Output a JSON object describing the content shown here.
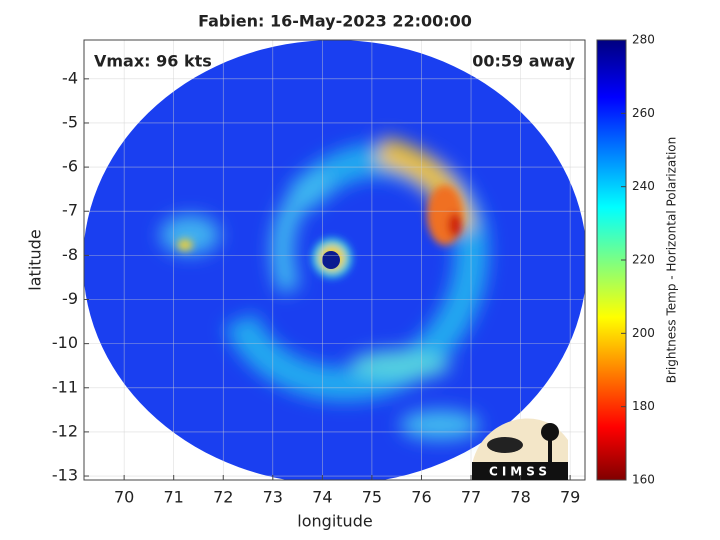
{
  "title": "Fabien: 16-May-2023 22:00:00",
  "annotations": {
    "vmax": "Vmax: 96 kts",
    "time_away": "00:59 away"
  },
  "x_axis": {
    "label": "longitude",
    "lim": [
      69.19,
      79.3
    ],
    "ticks": [
      70,
      71,
      72,
      73,
      74,
      75,
      76,
      77,
      78,
      79
    ]
  },
  "y_axis": {
    "label": "latitude",
    "lim": [
      -13.09,
      -3.12
    ],
    "ticks": [
      -4,
      -5,
      -6,
      -7,
      -8,
      -9,
      -10,
      -11,
      -12,
      -13
    ]
  },
  "colorbar": {
    "label": "Brightness Temp - Horizontal Polarization",
    "lim": [
      160,
      280
    ],
    "ticks": [
      160,
      180,
      200,
      220,
      240,
      260,
      280
    ]
  },
  "logo": {
    "text": "CIMSS"
  }
}
